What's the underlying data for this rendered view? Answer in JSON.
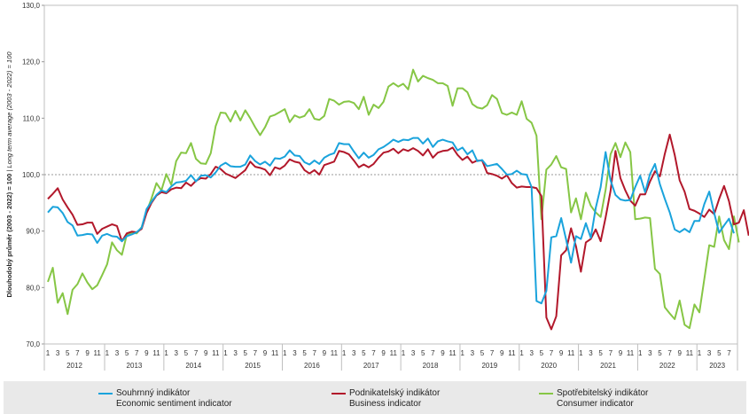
{
  "chart_data": {
    "type": "line",
    "ylabel_main": "Dlouhodobý průměr (2003 - 2022) = 100",
    "ylabel_sub": "Long term average (2003 - 2022) = 100",
    "ylim": [
      70,
      130
    ],
    "yticks": [
      "70,0",
      "80,0",
      "90,0",
      "100,0",
      "110,0",
      "120,0",
      "130,0"
    ],
    "reference_line": 100,
    "month_tick_labels": [
      "1",
      "3",
      "5",
      "7",
      "9",
      "11"
    ],
    "years": [
      "2012",
      "2013",
      "2014",
      "2015",
      "2016",
      "2017",
      "2018",
      "2019",
      "2020",
      "2021",
      "2022",
      "2023"
    ],
    "x_start": "2012-01",
    "x_end": "2023-09",
    "series": [
      {
        "name": "Souhrnný indikátor",
        "name_en": "Economic sentiment indicator",
        "color": "#1aa3dc",
        "values": [
          93.3,
          94.3,
          94.2,
          93.2,
          91.6,
          91.0,
          89.2,
          89.3,
          89.5,
          89.4,
          87.9,
          89.2,
          89.5,
          89.1,
          89.0,
          88.2,
          89.1,
          89.4,
          89.8,
          90.6,
          93.9,
          95.2,
          96.4,
          97.2,
          96.9,
          97.9,
          98.6,
          98.7,
          98.9,
          99.9,
          98.8,
          99.8,
          99.9,
          99.5,
          100.4,
          101.6,
          102.1,
          101.5,
          101.4,
          101.4,
          101.8,
          103.4,
          102.4,
          101.8,
          102.3,
          101.6,
          102.9,
          102.8,
          103.2,
          104.3,
          103.4,
          103.3,
          102.2,
          101.8,
          102.5,
          101.9,
          103.0,
          103.5,
          103.8,
          105.6,
          105.4,
          105.4,
          104.1,
          102.9,
          103.9,
          103.0,
          103.5,
          104.5,
          104.9,
          105.5,
          106.2,
          105.8,
          106.2,
          106.1,
          106.5,
          106.5,
          105.5,
          106.4,
          104.9,
          105.9,
          106.2,
          105.9,
          105.7,
          104.3,
          104.8,
          103.6,
          104.3,
          102.4,
          102.6,
          101.5,
          101.7,
          101.9,
          101.0,
          100.0,
          100.1,
          100.7,
          100.1,
          100.0,
          97.8,
          77.6,
          77.2,
          79.4,
          88.9,
          89.1,
          92.3,
          88.5,
          84.4,
          89.1,
          88.6,
          91.4,
          88.8,
          94.1,
          97.8,
          104.0,
          99.0,
          96.4,
          95.6,
          95.4,
          95.5,
          97.8,
          99.8,
          96.9,
          100.1,
          101.9,
          98.3,
          95.7,
          93.3,
          90.3,
          89.8,
          90.4,
          89.8,
          91.8,
          91.8,
          94.8,
          97.0,
          93.2,
          89.7,
          91.0,
          92.2,
          89.6
        ]
      },
      {
        "name": "Podnikatelský indikátor",
        "name_en": "Business indicator",
        "color": "#b2182b",
        "values": [
          95.7,
          96.6,
          97.6,
          95.6,
          94.2,
          92.9,
          91.1,
          91.2,
          91.5,
          91.5,
          89.5,
          90.4,
          90.8,
          91.2,
          90.9,
          88.2,
          89.6,
          89.9,
          89.8,
          90.4,
          93.2,
          95.0,
          96.3,
          96.9,
          96.7,
          97.4,
          97.7,
          97.6,
          98.6,
          98.0,
          98.9,
          99.4,
          99.3,
          100.1,
          101.4,
          101.0,
          100.2,
          99.8,
          99.4,
          100.1,
          100.8,
          102.3,
          101.4,
          101.2,
          100.9,
          99.9,
          101.3,
          101.0,
          101.6,
          102.7,
          102.3,
          102.1,
          100.8,
          100.2,
          100.8,
          100.0,
          101.7,
          102.0,
          102.3,
          104.2,
          104.0,
          103.6,
          102.5,
          101.3,
          101.8,
          101.3,
          101.9,
          103.0,
          103.9,
          104.1,
          104.6,
          103.8,
          104.5,
          104.2,
          104.7,
          104.2,
          103.4,
          104.5,
          103.0,
          103.9,
          104.2,
          104.3,
          104.8,
          103.5,
          102.6,
          103.2,
          102.1,
          102.5,
          102.5,
          100.3,
          100.1,
          99.8,
          99.3,
          99.9,
          98.5,
          97.7,
          97.9,
          97.8,
          97.8,
          97.6,
          96.2,
          74.7,
          72.6,
          74.9,
          85.7,
          86.6,
          90.5,
          87.3,
          82.8,
          88.0,
          88.6,
          90.3,
          88.2,
          92.4,
          97.1,
          104.2,
          99.4,
          97.2,
          95.4,
          94.5,
          96.5,
          96.5,
          98.8,
          100.6,
          99.7,
          103.7,
          107.1,
          103.5,
          99.0,
          97.0,
          93.9,
          93.6,
          93.1,
          92.5,
          93.8,
          93.0,
          95.7,
          98.0,
          95.3,
          91.2,
          91.5,
          93.7,
          89.2
        ]
      },
      {
        "name": "Spotřebitelský indikátor",
        "name_en": "Consumer indicator",
        "color": "#86c645",
        "values": [
          81.0,
          83.5,
          77.3,
          79.0,
          75.3,
          79.6,
          80.6,
          82.5,
          80.9,
          79.7,
          80.4,
          82.2,
          84.1,
          88.0,
          86.6,
          85.8,
          89.4,
          89.7,
          89.6,
          90.7,
          93.4,
          95.8,
          98.5,
          97.2,
          100.1,
          98.2,
          102.4,
          103.9,
          103.8,
          105.6,
          102.8,
          102.0,
          101.9,
          103.8,
          108.6,
          111.0,
          110.9,
          109.4,
          111.3,
          109.6,
          111.4,
          110.0,
          108.4,
          107.0,
          108.4,
          110.3,
          110.6,
          111.1,
          111.6,
          109.3,
          110.5,
          110.1,
          110.4,
          111.6,
          109.9,
          109.7,
          110.4,
          113.4,
          113.1,
          112.4,
          112.9,
          113.0,
          112.7,
          111.6,
          113.8,
          110.6,
          112.4,
          111.8,
          112.9,
          115.6,
          116.2,
          115.6,
          116.1,
          115.1,
          118.6,
          116.5,
          117.5,
          117.1,
          116.8,
          116.2,
          116.2,
          115.7,
          112.2,
          115.3,
          115.3,
          114.6,
          112.5,
          111.9,
          111.7,
          112.3,
          114.1,
          113.4,
          110.9,
          110.6,
          111.0,
          110.6,
          113.0,
          109.9,
          109.2,
          106.9,
          92.1,
          100.9,
          101.8,
          103.3,
          101.3,
          101.0,
          93.3,
          95.8,
          92.1,
          96.8,
          94.5,
          93.3,
          92.5,
          97.3,
          103.6,
          105.6,
          103.1,
          105.7,
          104.0,
          92.1,
          92.2,
          92.4,
          92.3,
          83.3,
          82.4,
          76.5,
          75.4,
          74.4,
          77.7,
          73.4,
          72.8,
          77.0,
          75.6,
          81.5,
          87.5,
          87.2,
          92.6,
          88.4,
          86.8,
          92.6,
          88.0
        ]
      }
    ]
  }
}
